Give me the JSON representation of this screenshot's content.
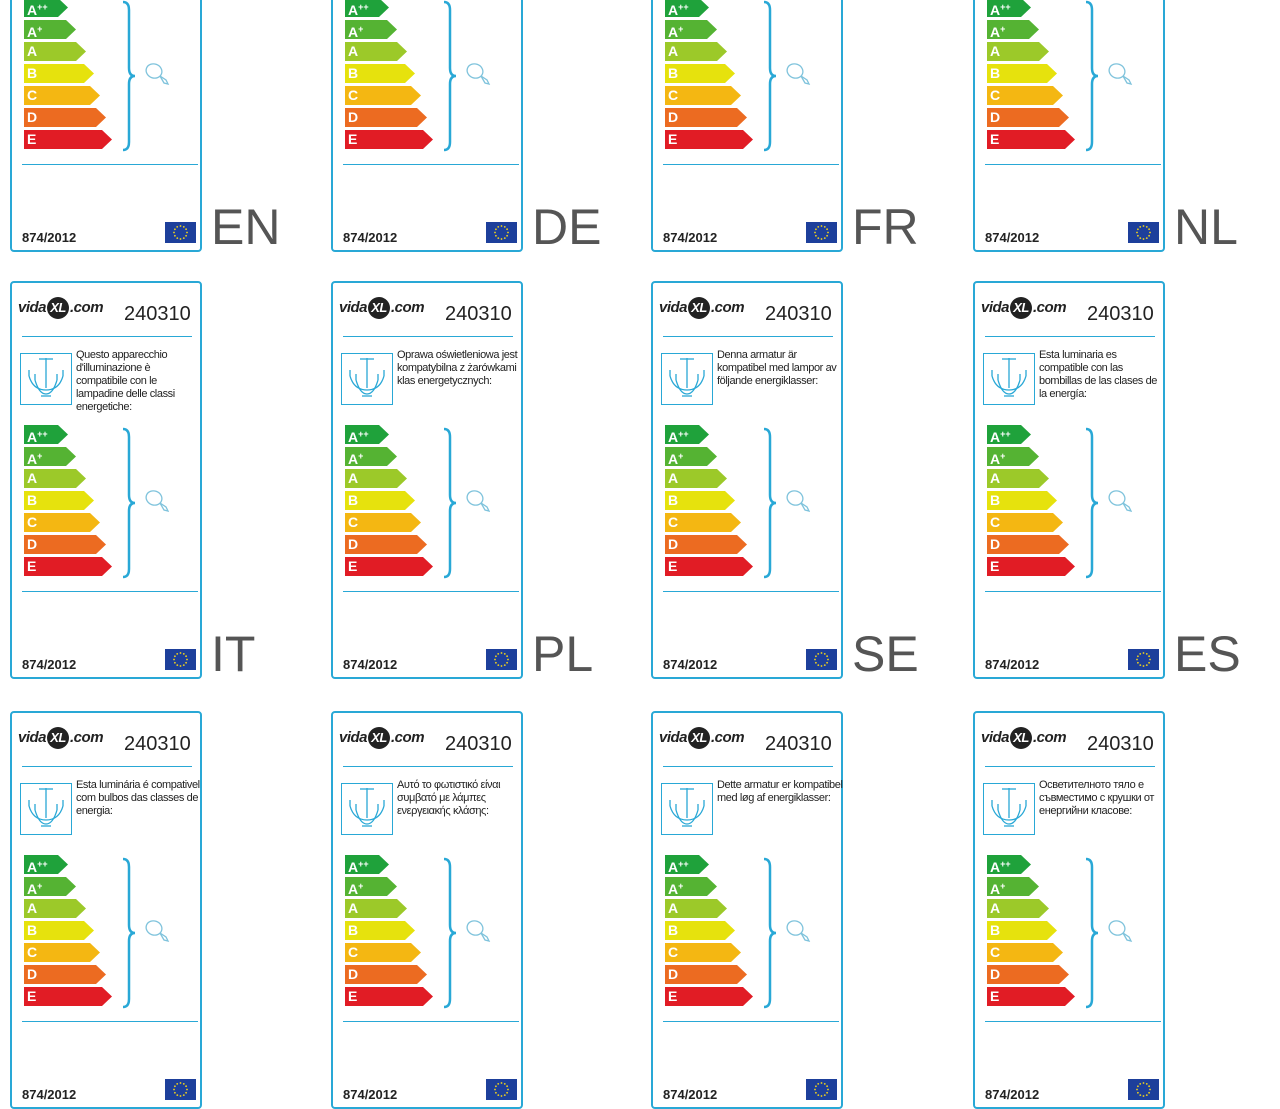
{
  "brand": {
    "prefix": "vida",
    "x": "XL",
    "suffix": ".com"
  },
  "product_code": "240310",
  "regulation": "874/2012",
  "energy_classes": [
    {
      "letter": "A",
      "sup": "++",
      "color": "#1fa23b"
    },
    {
      "letter": "A",
      "sup": "+",
      "color": "#55b333"
    },
    {
      "letter": "A",
      "sup": "",
      "color": "#9cc929"
    },
    {
      "letter": "B",
      "sup": "",
      "color": "#e6e20d"
    },
    {
      "letter": "C",
      "sup": "",
      "color": "#f4b712"
    },
    {
      "letter": "D",
      "sup": "",
      "color": "#ec6b21"
    },
    {
      "letter": "E",
      "sup": "",
      "color": "#e11c25"
    }
  ],
  "colors": {
    "frame": "#29a8d6",
    "eu_flag": "#1d3f9b",
    "eu_stars": "#f3d41a",
    "lang": "#555555"
  },
  "icons": {
    "lamp": "chandelier-icon",
    "bulb": "light-bulb-icon",
    "flag": "eu-flag-icon",
    "brace": "curly-brace-icon"
  },
  "labels": [
    {
      "lang": "EN",
      "description": ""
    },
    {
      "lang": "DE",
      "description": ""
    },
    {
      "lang": "FR",
      "description": ""
    },
    {
      "lang": "NL",
      "description": ""
    },
    {
      "lang": "IT",
      "description": "Questo apparecchio d'illuminazione è compatibile con le lampadine delle classi energetiche:"
    },
    {
      "lang": "PL",
      "description": "Oprawa oświetleniowa jest kompatybilna z żarówkami klas energetycznych:"
    },
    {
      "lang": "SE",
      "description": "Denna armatur är kompatibel med lampor av följande energiklasser:"
    },
    {
      "lang": "ES",
      "description": "Esta luminaria es compatible con las bombillas de las clases de la energía:"
    },
    {
      "lang": "",
      "description": "Esta luminária é compativel com bulbos das classes de energia:"
    },
    {
      "lang": "",
      "description": "Αυτό το φωτιστικό είναι συμβατό με λάμπες ενεργειακής κλάσης:"
    },
    {
      "lang": "",
      "description": "Dette armatur er kompatibel med løg af energiklasser:"
    },
    {
      "lang": "",
      "description": "Осветителното тяло е съвместимо с крушки от енергийни класове:"
    }
  ]
}
